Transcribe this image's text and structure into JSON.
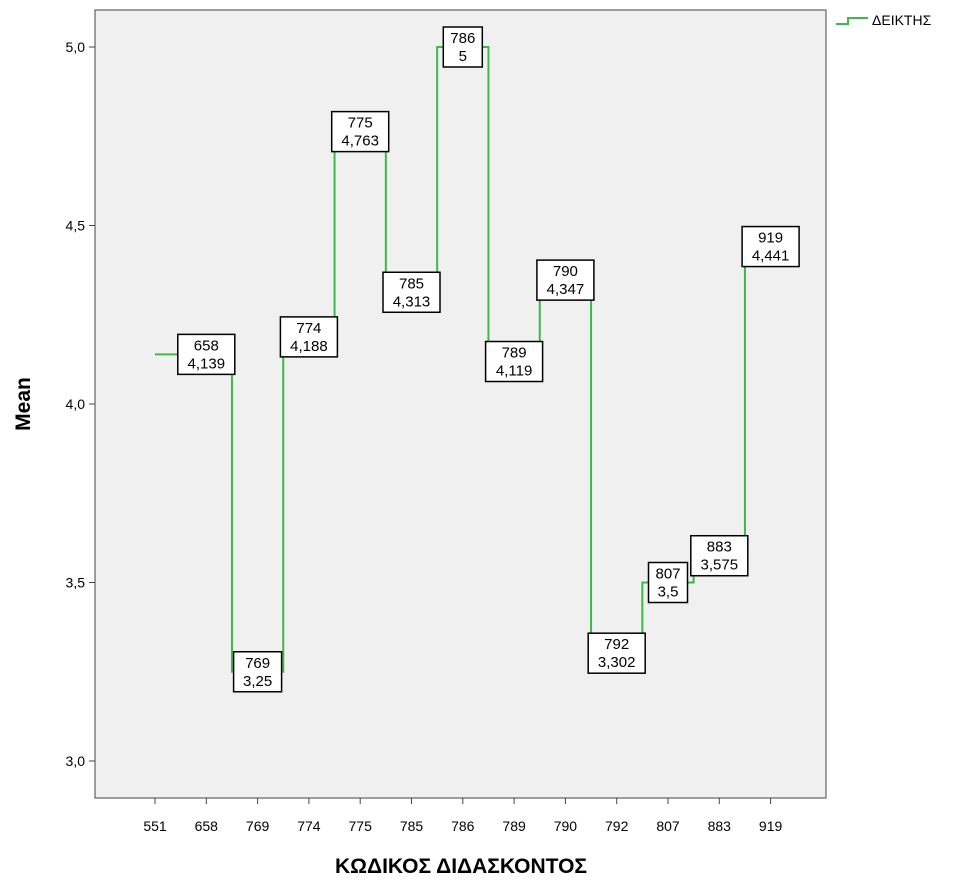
{
  "chart_data": {
    "type": "line",
    "step": true,
    "title": "",
    "xlabel": "ΚΩΔΙΚΟΣ ΔΙΔΑΣΚΟΝΤΟΣ",
    "ylabel": "Mean",
    "ylim": [
      2.9,
      5.1
    ],
    "yticks": [
      3.0,
      3.5,
      4.0,
      4.5,
      5.0
    ],
    "ytick_labels": [
      "3,0",
      "3,5",
      "4,0",
      "4,5",
      "5,0"
    ],
    "categories": [
      "551",
      "658",
      "769",
      "774",
      "775",
      "785",
      "786",
      "789",
      "790",
      "792",
      "807",
      "883",
      "919"
    ],
    "series": [
      {
        "name": "ΔΕΙΚΤΗΣ",
        "color": "#3cb94a",
        "values": [
          4.139,
          4.139,
          3.25,
          4.188,
          4.763,
          4.313,
          5.0,
          4.119,
          4.347,
          3.302,
          3.5,
          3.575,
          4.441
        ]
      }
    ],
    "data_labels": [
      {
        "category": "658",
        "code": "658",
        "value": "4,139"
      },
      {
        "category": "769",
        "code": "769",
        "value": "3,25"
      },
      {
        "category": "774",
        "code": "774",
        "value": "4,188"
      },
      {
        "category": "775",
        "code": "775",
        "value": "4,763"
      },
      {
        "category": "785",
        "code": "785",
        "value": "4,313"
      },
      {
        "category": "786",
        "code": "786",
        "value": "5"
      },
      {
        "category": "789",
        "code": "789",
        "value": "4,119"
      },
      {
        "category": "790",
        "code": "790",
        "value": "4,347"
      },
      {
        "category": "792",
        "code": "792",
        "value": "3,302"
      },
      {
        "category": "807",
        "code": "807",
        "value": "3,5"
      },
      {
        "category": "883",
        "code": "883",
        "value": "3,575"
      },
      {
        "category": "919",
        "code": "919",
        "value": "4,441"
      }
    ],
    "legend": {
      "position": "top-right",
      "entries": [
        "ΔΕΙΚΤΗΣ"
      ]
    },
    "plot_background": "#f0f0f0",
    "grid": false
  }
}
